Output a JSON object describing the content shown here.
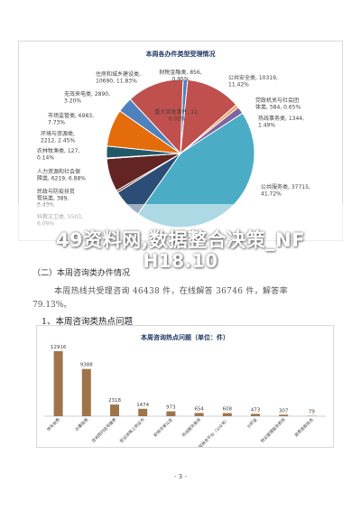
{
  "pie_chart": {
    "title": "本周各办件类型受理情况",
    "slices": [
      {
        "name": "财税金融类",
        "value": 856,
        "pct": "0.95%",
        "color": "#4f81bd"
      },
      {
        "name": "公共安全类",
        "value": 10319,
        "pct": "11.42%",
        "color": "#c0504d"
      },
      {
        "name": "重大突发事件",
        "value": 12,
        "pct": "0.01%",
        "color": "#9bbb59"
      },
      {
        "name": "党政机关与社会团体类",
        "value": 584,
        "pct": "0.65%",
        "color": "#f79646"
      },
      {
        "name": "热线事务类",
        "value": 1344,
        "pct": "1.49%",
        "color": "#8064a2"
      },
      {
        "name": "公共服务类",
        "value": 37715,
        "pct": "41.72%",
        "color": "#4bacc6"
      },
      {
        "name": "科教文卫类",
        "value": 5503,
        "pct": "6.09%",
        "color": "#2c4d75"
      },
      {
        "name": "民政与防疫扶贫帮扶类",
        "value": 389,
        "pct": "0.43%",
        "color": "#772c2a"
      },
      {
        "name": "人力资源和社会保障类",
        "value": 6219,
        "pct": "6.88%",
        "color": "#632523"
      },
      {
        "name": "农林牧渔类",
        "value": 127,
        "pct": "0.14%",
        "color": "#403152"
      },
      {
        "name": "环境与资源类",
        "value": 2212,
        "pct": "2.45%",
        "color": "#215968"
      },
      {
        "name": "市场监管类",
        "value": 6983,
        "pct": "7.73%",
        "color": "#e46c0a"
      },
      {
        "name": "无效来电类",
        "value": 2890,
        "pct": "3.20%",
        "color": "#4f81bd"
      },
      {
        "name": "住房和城乡建设类",
        "value": 10690,
        "pct": "11.83%",
        "color": "#c0504d"
      }
    ],
    "labels": [
      {
        "line1": "财税金融类, 856,",
        "line2": "0.95%"
      },
      {
        "line1": "公共安全类, 10319,",
        "line2": "11.42%"
      },
      {
        "line1": "重大突发事件, 12,",
        "line2": "0.01%"
      },
      {
        "line1": "党政机关与社会团",
        "line2": "体类, 584, 0.65%"
      },
      {
        "line1": "热线事务类, 1344,",
        "line2": "1.49%"
      },
      {
        "line1": "公共服务类, 37715,",
        "line2": "41.72%"
      },
      {
        "line1": "科教文卫类, 5503,",
        "line2": "6.09%"
      },
      {
        "line1": "民政与防疫扶贫",
        "line2": "帮扶类, 389,",
        "line3": "0.43%"
      },
      {
        "line1": "人力资源和社会保",
        "line2": "障类, 6219, 6.88%"
      },
      {
        "line1": "农林牧渔类, 127,",
        "line2": "0.14%"
      },
      {
        "line1": "环境与资源类,",
        "line2": "2212, 2.45%"
      },
      {
        "line1": "市场监管类, 6983,",
        "line2": "7.73%"
      },
      {
        "line1": "无效来电类, 2890,",
        "line2": "3.20%"
      },
      {
        "line1": "住房和城乡建设类,",
        "line2": "10690, 11.83%"
      }
    ]
  },
  "watermark": {
    "line1": "49资料网,数据整合决策_NF",
    "line2": "H18.10"
  },
  "document": {
    "section_heading": "（二）本周咨询类办件情况",
    "paragraph_line1": "本周热线共受理咨询 46438 件，在线解答 36746 件，解答率",
    "paragraph_line2": "79.13%。",
    "subheading": "1、本周咨询类热点问题",
    "page_number": "- 3 -"
  },
  "chart_data": {
    "type": "bar",
    "title": "本周咨询热点问题（单位：件）",
    "categories": [
      "停车收费",
      "办事指南",
      "咨询预约挂号缴费",
      "职业资格上岗证书",
      "职称评审认定",
      "热线服务查询",
      "国家政务平台（公众号）",
      "公积金",
      "物业管理服务费用",
      "退费退款信息"
    ],
    "values": [
      12916,
      9388,
      2318,
      1474,
      973,
      654,
      608,
      473,
      307,
      79
    ],
    "bar_color": "#a0744a",
    "ylim": [
      0,
      14000
    ]
  }
}
